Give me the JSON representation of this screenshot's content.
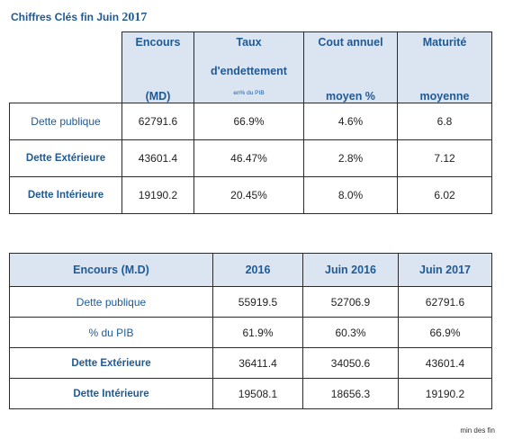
{
  "title": {
    "text": "Chiffres  Clés  fin Juin",
    "year": "2017"
  },
  "table1": {
    "headers": {
      "encours_top": "Encours",
      "encours_bottom": "(MD)",
      "taux_top": "Taux",
      "taux_mid": "d'endettement",
      "taux_small": "en% du PIB",
      "cout_top": "Cout annuel",
      "cout_bottom": "moyen %",
      "maturite_top": "Maturité",
      "maturite_bottom": "moyenne"
    },
    "rows": [
      {
        "label": "Dette publique",
        "encours": "62791.6",
        "taux": "66.9%",
        "cout": "4.6%",
        "maturite": "6.8"
      },
      {
        "label": "Dette Extérieure",
        "encours": "43601.4",
        "taux": "46.47%",
        "cout": "2.8%",
        "maturite": "7.12"
      },
      {
        "label": "Dette Intérieure",
        "encours": "19190.2",
        "taux": "20.45%",
        "cout": "8.0%",
        "maturite": "6.02"
      }
    ]
  },
  "table2": {
    "headers": [
      "Encours (M.D)",
      "2016",
      "Juin 2016",
      "Juin 2017"
    ],
    "rows": [
      {
        "label": "Dette publique",
        "values": [
          "55919.5",
          "52706.9",
          "62791.6"
        ]
      },
      {
        "label": "% du PIB",
        "values": [
          "61.9%",
          "60.3%",
          "66.9%"
        ]
      },
      {
        "label": "Dette Extérieure",
        "values": [
          "36411.4",
          "34050.6",
          "43601.4"
        ]
      },
      {
        "label": "Dette Intérieure",
        "values": [
          "19508.1",
          "18656.3",
          "19190.2"
        ]
      }
    ]
  },
  "footer": "min des fin",
  "colors": {
    "header_bg": "#dbe5f1",
    "header_text": "#1f5a96",
    "border": "#2a2a2a"
  }
}
